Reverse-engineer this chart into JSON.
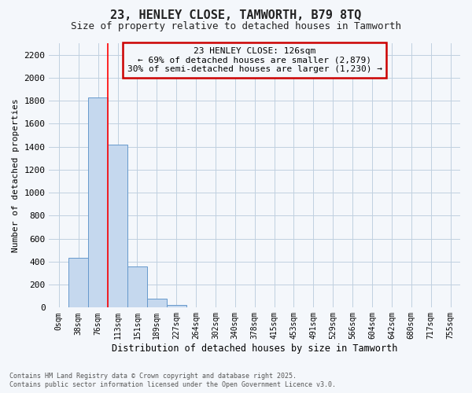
{
  "title": "23, HENLEY CLOSE, TAMWORTH, B79 8TQ",
  "subtitle": "Size of property relative to detached houses in Tamworth",
  "xlabel": "Distribution of detached houses by size in Tamworth",
  "ylabel": "Number of detached properties",
  "bar_values": [
    5,
    430,
    1830,
    1420,
    355,
    75,
    22,
    3,
    0,
    0,
    0,
    0,
    0,
    0,
    0,
    0,
    0,
    0,
    0,
    0,
    0
  ],
  "bar_color": "#c5d8ee",
  "bar_edge_color": "#6699cc",
  "categories": [
    "0sqm",
    "38sqm",
    "76sqm",
    "113sqm",
    "151sqm",
    "189sqm",
    "227sqm",
    "264sqm",
    "302sqm",
    "340sqm",
    "378sqm",
    "415sqm",
    "453sqm",
    "491sqm",
    "529sqm",
    "566sqm",
    "604sqm",
    "642sqm",
    "680sqm",
    "717sqm",
    "755sqm"
  ],
  "ylim_max": 2300,
  "yticks": [
    0,
    200,
    400,
    600,
    800,
    1000,
    1200,
    1400,
    1600,
    1800,
    2000,
    2200
  ],
  "red_line_x": 2.5,
  "annotation_title": "23 HENLEY CLOSE: 126sqm",
  "annotation_line1": "← 69% of detached houses are smaller (2,879)",
  "annotation_line2": "30% of semi-detached houses are larger (1,230) →",
  "annotation_box_edge_color": "#cc0000",
  "grid_color": "#c0d0e0",
  "bg_color": "#f4f7fb",
  "footer_line1": "Contains HM Land Registry data © Crown copyright and database right 2025.",
  "footer_line2": "Contains public sector information licensed under the Open Government Licence v3.0."
}
